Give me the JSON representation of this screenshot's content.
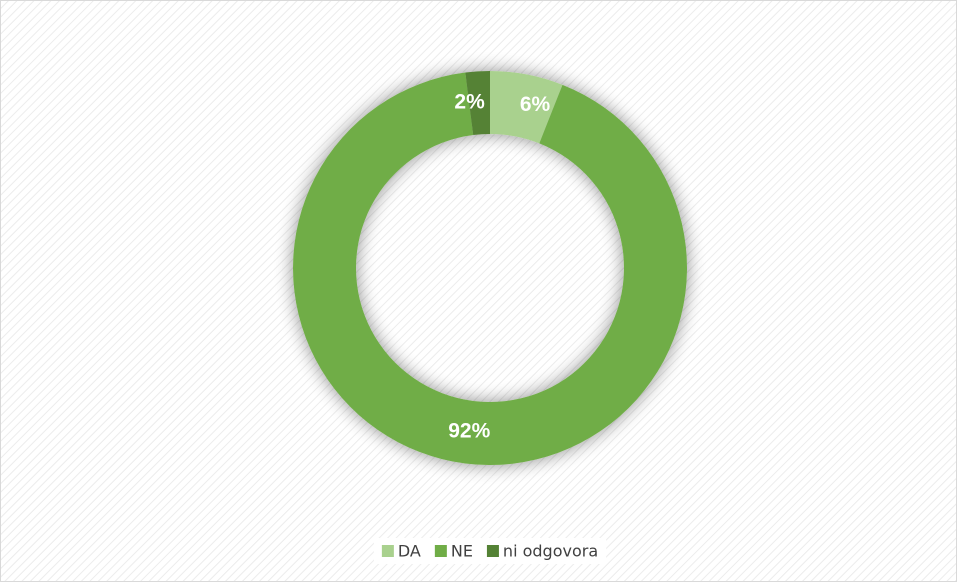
{
  "chart_data": {
    "type": "donut",
    "categories": [
      "DA",
      "NE",
      "ni odgovora"
    ],
    "values": [
      6,
      92,
      2
    ],
    "value_labels": [
      "6%",
      "92%",
      "2%"
    ],
    "colors": [
      "#a9d18e",
      "#70ad47",
      "#548235"
    ],
    "legend": "bottom"
  }
}
